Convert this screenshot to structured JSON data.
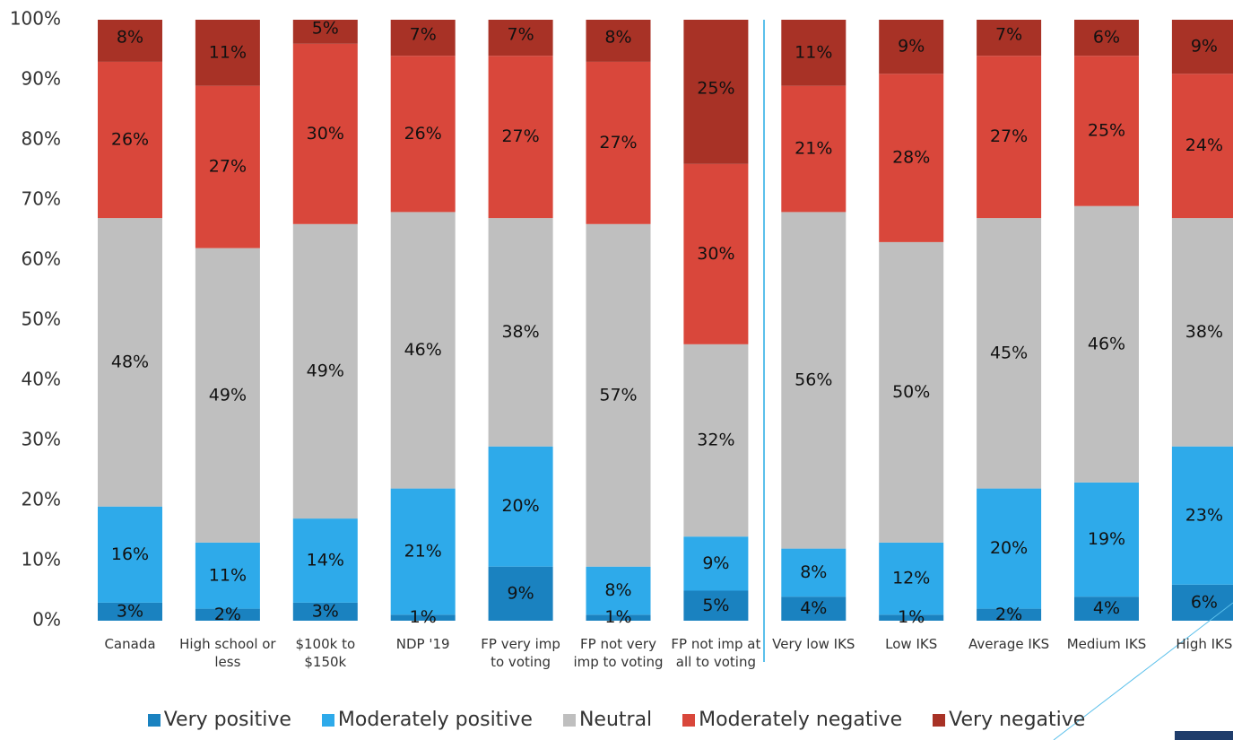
{
  "chart_data": {
    "type": "stacked_bar",
    "categories": [
      "Canada",
      "High school or less",
      "$100k to $150k",
      "NDP '19",
      "FP very imp to voting",
      "FP not very imp to voting",
      "FP not imp at all to voting",
      "Very low IKS",
      "Low IKS",
      "Average IKS",
      "Medium IKS",
      "High IKS"
    ],
    "series": [
      {
        "name": "Very positive",
        "color": "#1a82c0",
        "values": [
          3,
          2,
          3,
          1,
          9,
          1,
          5,
          4,
          1,
          2,
          4,
          6
        ],
        "value_labels": [
          "3%",
          "2%",
          "3%",
          "1%",
          "9%",
          "1%",
          "5%",
          "4%",
          "1%",
          "2%",
          "4%",
          "6%"
        ]
      },
      {
        "name": "Moderately positive",
        "color": "#2eaaea",
        "values": [
          16,
          11,
          14,
          21,
          20,
          8,
          9,
          8,
          12,
          20,
          19,
          23
        ],
        "value_labels": [
          "16%",
          "11%",
          "14%",
          "21%",
          "20%",
          "8%",
          "9%",
          "8%",
          "12%",
          "20%",
          "19%",
          "23%"
        ]
      },
      {
        "name": "Neutral",
        "color": "#bfbfbf",
        "values": [
          48,
          49,
          49,
          46,
          38,
          57,
          32,
          56,
          50,
          45,
          46,
          38
        ],
        "value_labels": [
          "48%",
          "49%",
          "49%",
          "46%",
          "38%",
          "57%",
          "32%",
          "56%",
          "50%",
          "45%",
          "46%",
          "38%"
        ]
      },
      {
        "name": "Moderately negative",
        "color": "#d9473b",
        "values": [
          26,
          27,
          30,
          26,
          27,
          27,
          30,
          21,
          28,
          27,
          25,
          24
        ],
        "value_labels": [
          "26%",
          "27%",
          "30%",
          "26%",
          "27%",
          "27%",
          "30%",
          "21%",
          "28%",
          "27%",
          "25%",
          "24%"
        ]
      },
      {
        "name": "Very negative",
        "color": "#a83226",
        "values": [
          8,
          11,
          5,
          7,
          7,
          8,
          25,
          11,
          9,
          7,
          6,
          9
        ],
        "value_labels": [
          "8%",
          "11%",
          "5%",
          "7%",
          "7%",
          "8%",
          "25%",
          "11%",
          "9%",
          "7%",
          "6%",
          "9%"
        ]
      }
    ],
    "ylim": [
      0,
      100
    ],
    "yticks": [
      {
        "value": 0,
        "label": "0%"
      },
      {
        "value": 10,
        "label": "10%"
      },
      {
        "value": 20,
        "label": "20%"
      },
      {
        "value": 30,
        "label": "30%"
      },
      {
        "value": 40,
        "label": "40%"
      },
      {
        "value": 50,
        "label": "50%"
      },
      {
        "value": 60,
        "label": "60%"
      },
      {
        "value": 70,
        "label": "70%"
      },
      {
        "value": 80,
        "label": "80%"
      },
      {
        "value": 90,
        "label": "90%"
      },
      {
        "value": 100,
        "label": "100%"
      }
    ],
    "grid": false
  }
}
